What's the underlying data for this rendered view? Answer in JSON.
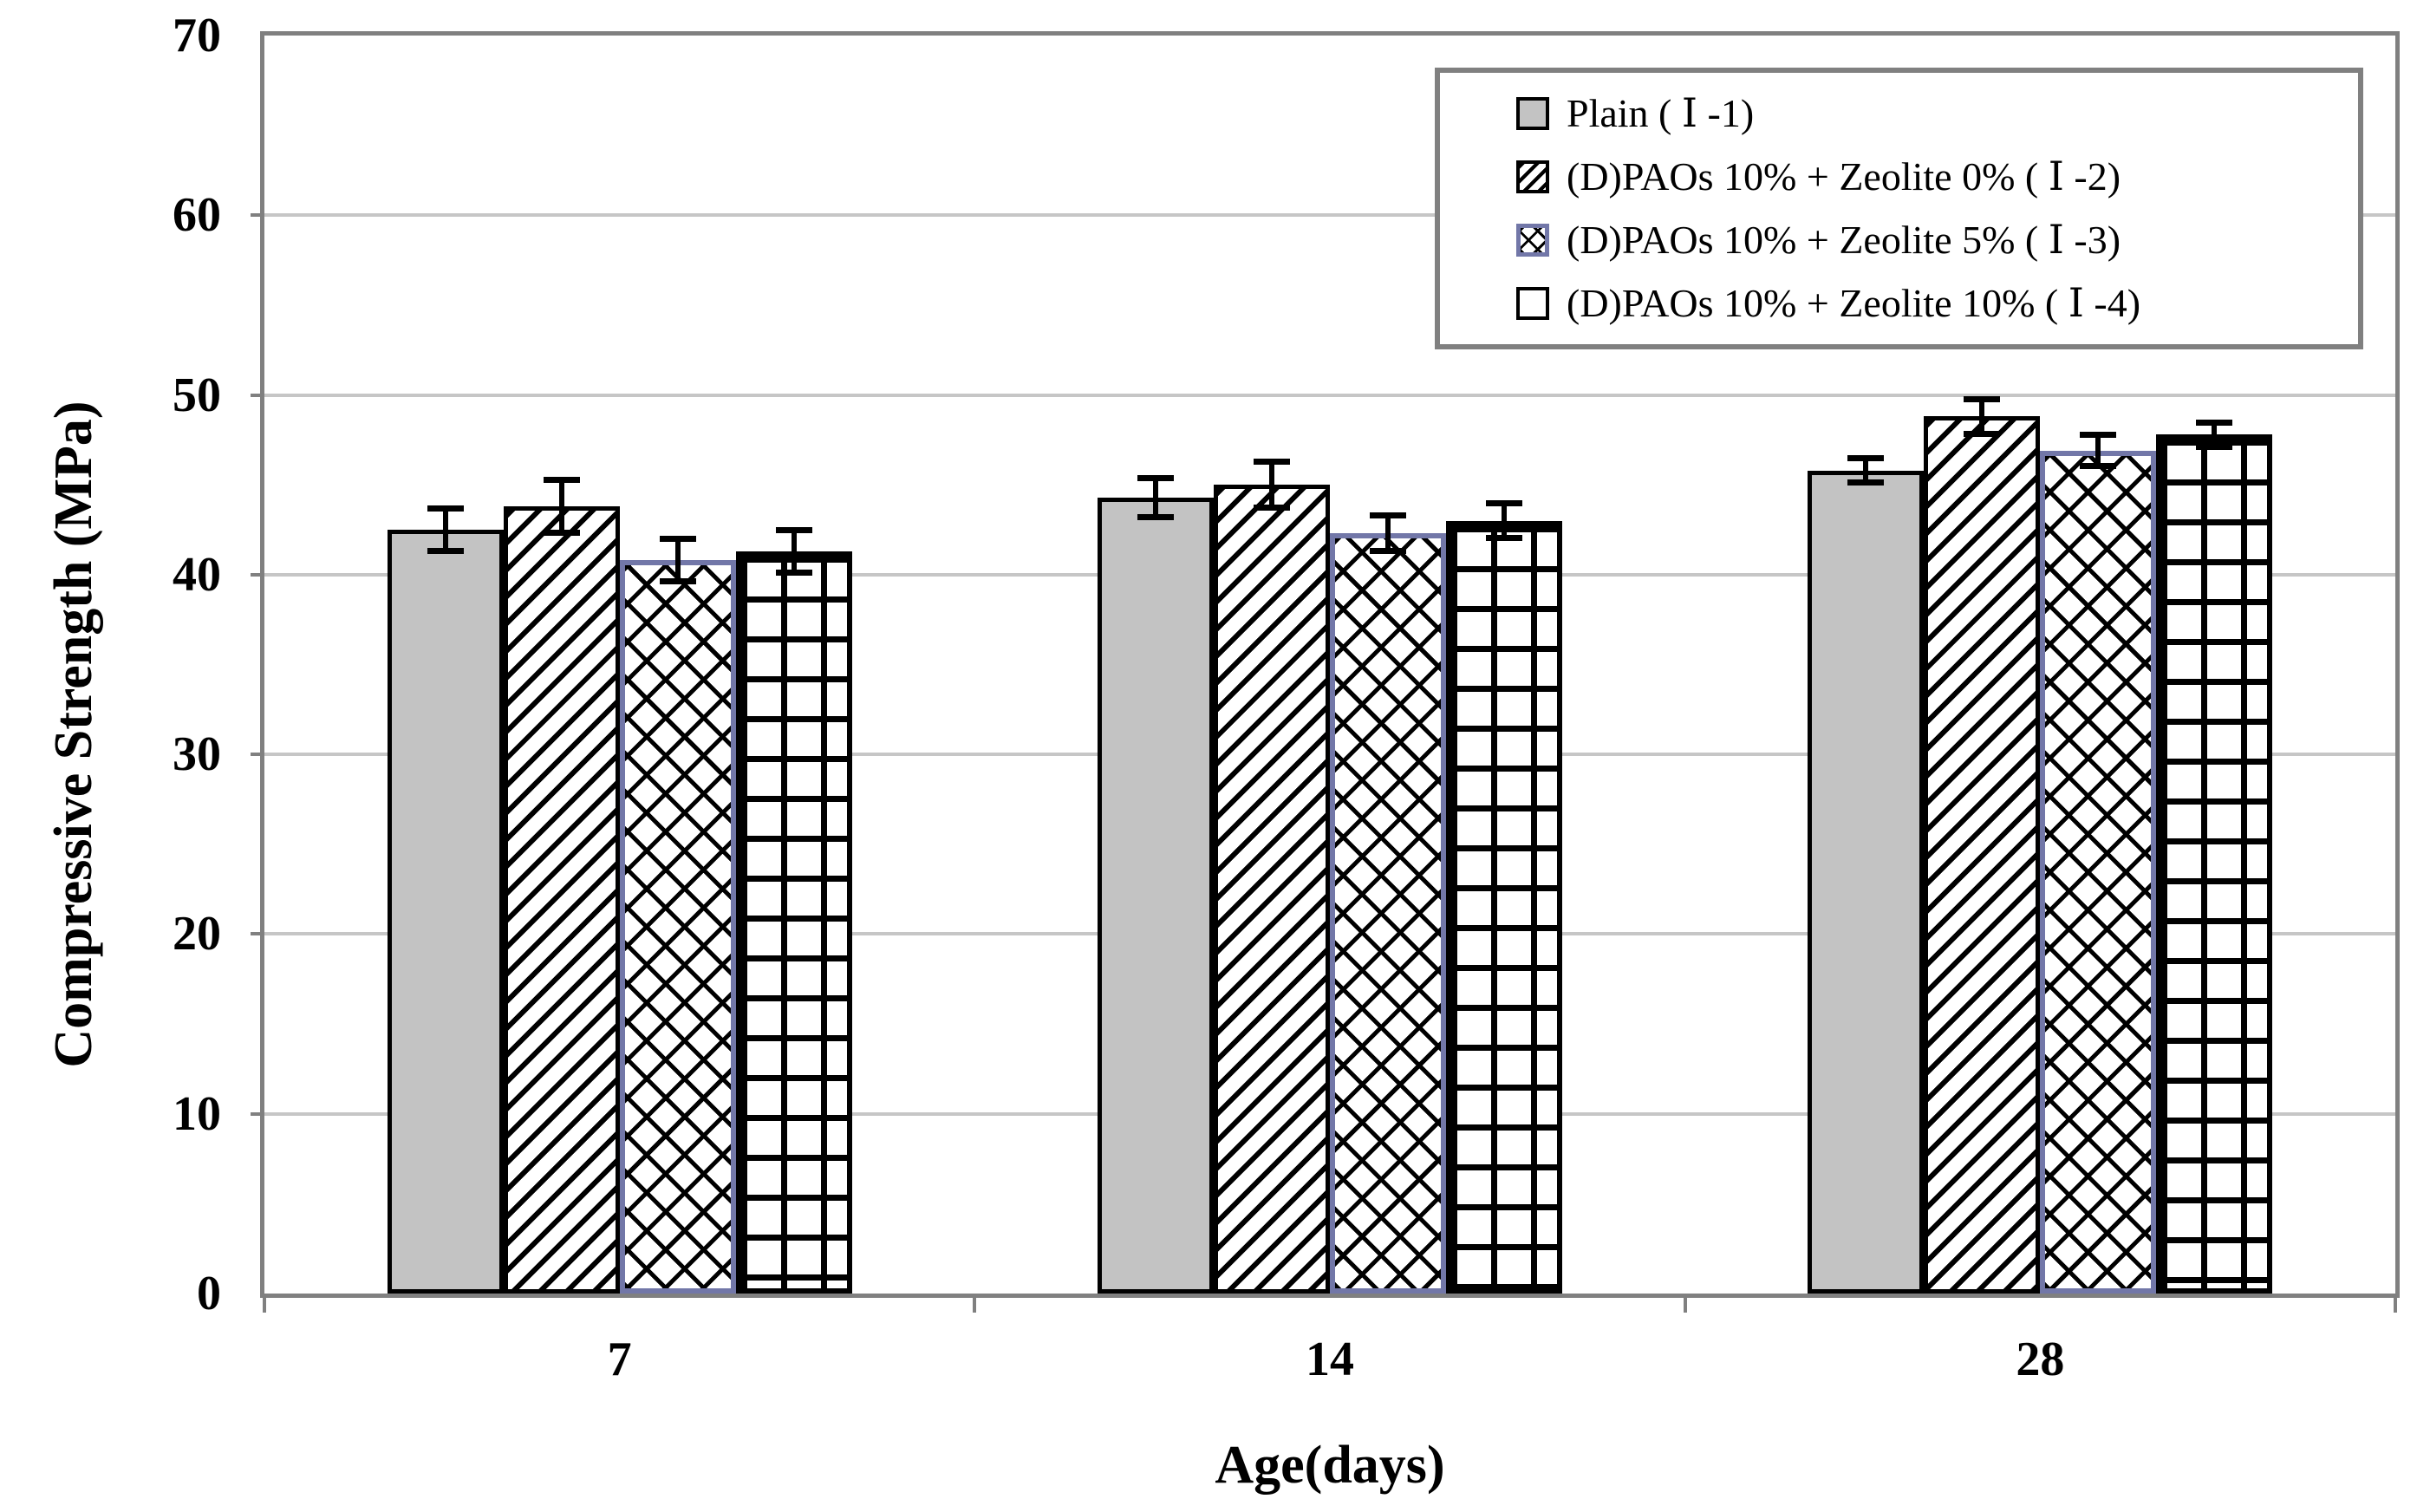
{
  "chart_data": {
    "type": "bar",
    "title": "",
    "xlabel": "Age(days)",
    "ylabel": "Compressive Strength (MPa)",
    "ylim": [
      0,
      70
    ],
    "yticks": [
      0,
      10,
      20,
      30,
      40,
      50,
      60,
      70
    ],
    "grid": true,
    "legend_position": "top-right",
    "categories": [
      "7",
      "14",
      "28"
    ],
    "series": [
      {
        "name": "Plain ( Ⅰ -1)",
        "pattern": "solid-gray",
        "values": [
          42.5,
          44.3,
          45.8
        ],
        "errors": [
          1.2,
          1.1,
          0.7
        ]
      },
      {
        "name": "(D)PAOs 10% + Zeolite 0% ( Ⅰ -2)",
        "pattern": "diagonal-hatch",
        "values": [
          43.8,
          45.0,
          48.8
        ],
        "errors": [
          1.5,
          1.3,
          1.0
        ]
      },
      {
        "name": "(D)PAOs 10% + Zeolite 5% ( Ⅰ -3)",
        "pattern": "cross-hatch",
        "values": [
          40.8,
          42.3,
          46.9
        ],
        "errors": [
          1.2,
          1.0,
          0.9
        ]
      },
      {
        "name": "(D)PAOs 10% + Zeolite 10% ( Ⅰ -4)",
        "pattern": "grid",
        "values": [
          41.3,
          43.0,
          47.8
        ],
        "errors": [
          1.2,
          1.0,
          0.7
        ]
      }
    ],
    "colors": {
      "plain_fill": "#c3c3c3",
      "bar_border": "#000000",
      "zeolite5_border": "#7277a8",
      "frame": "#808080",
      "gridline": "#c6c6c6",
      "error_bar": "#000000",
      "text": "#000000"
    }
  }
}
